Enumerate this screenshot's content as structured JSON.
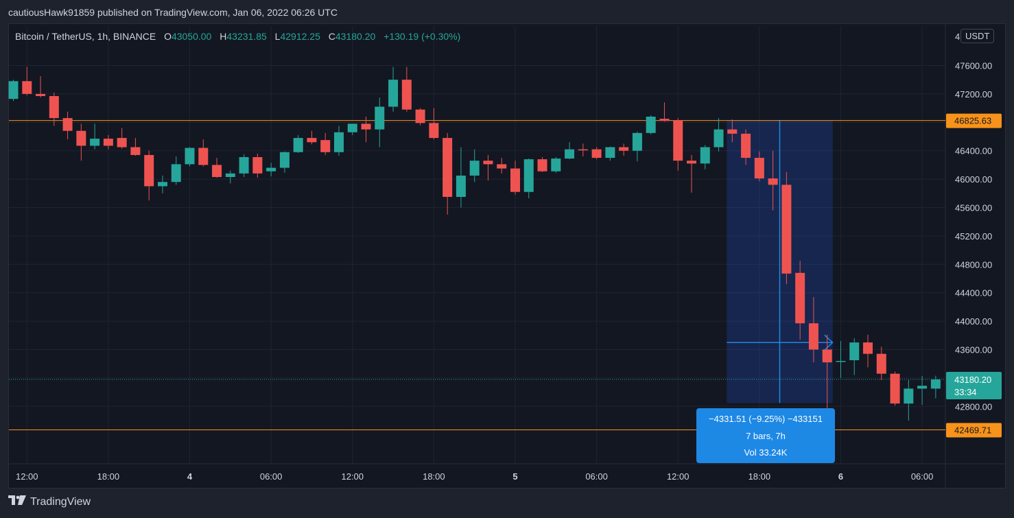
{
  "header": {
    "published_text": "cautiousHawk91859 published on TradingView.com, Jan 06, 2022 06:26 UTC"
  },
  "legend": {
    "symbol": "Bitcoin / TetherUS, 1h, BINANCE",
    "open_label": "O",
    "open": "43050.00",
    "high_label": "H",
    "high": "43231.85",
    "low_label": "L",
    "low": "42912.25",
    "close_label": "C",
    "close": "43180.20",
    "change": "+130.19 (+0.30%)"
  },
  "currency_button": "USDT",
  "footer": {
    "brand": "TradingView"
  },
  "colors": {
    "up": "#26a69a",
    "down": "#ef5350",
    "hline": "#f7931a",
    "measure": "#2962ff",
    "measure_label": "#1e88e5"
  },
  "chart_data": {
    "type": "candlestick",
    "ylim": [
      42200,
      47850
    ],
    "price_ticks": [
      47600,
      47200,
      46800,
      46400,
      46000,
      45600,
      45200,
      44800,
      44400,
      44000,
      43600,
      43200,
      42800
    ],
    "price_tick_labels": [
      "47600.00",
      "47200.00",
      "46800.00",
      "46400.00",
      "46000.00",
      "45600.00",
      "45200.00",
      "44800.00",
      "44400.00",
      "44000.00",
      "43600.00",
      "43200.00",
      "42800.00"
    ],
    "time_labels": [
      {
        "bar": 1,
        "label": "12:00"
      },
      {
        "bar": 7,
        "label": "18:00"
      },
      {
        "bar": 13,
        "label": "4"
      },
      {
        "bar": 19,
        "label": "06:00"
      },
      {
        "bar": 25,
        "label": "12:00"
      },
      {
        "bar": 31,
        "label": "18:00"
      },
      {
        "bar": 37,
        "label": "5"
      },
      {
        "bar": 43,
        "label": "06:00"
      },
      {
        "bar": 49,
        "label": "12:00"
      },
      {
        "bar": 55,
        "label": "18:00"
      },
      {
        "bar": 61,
        "label": "6"
      },
      {
        "bar": 67,
        "label": "06:00"
      }
    ],
    "candles": [
      {
        "o": 47130,
        "h": 47400,
        "l": 47100,
        "c": 47380
      },
      {
        "o": 47380,
        "h": 47580,
        "l": 47180,
        "c": 47200
      },
      {
        "o": 47200,
        "h": 47450,
        "l": 47150,
        "c": 47170
      },
      {
        "o": 47170,
        "h": 47220,
        "l": 46750,
        "c": 46860
      },
      {
        "o": 46860,
        "h": 46950,
        "l": 46560,
        "c": 46680
      },
      {
        "o": 46680,
        "h": 46780,
        "l": 46260,
        "c": 46470
      },
      {
        "o": 46470,
        "h": 46780,
        "l": 46420,
        "c": 46570
      },
      {
        "o": 46570,
        "h": 46620,
        "l": 46420,
        "c": 46470
      },
      {
        "o": 46580,
        "h": 46720,
        "l": 46430,
        "c": 46450
      },
      {
        "o": 46450,
        "h": 46580,
        "l": 46330,
        "c": 46340
      },
      {
        "o": 46340,
        "h": 46400,
        "l": 45700,
        "c": 45900
      },
      {
        "o": 45900,
        "h": 46050,
        "l": 45800,
        "c": 45960
      },
      {
        "o": 45960,
        "h": 46320,
        "l": 45920,
        "c": 46210
      },
      {
        "o": 46210,
        "h": 46450,
        "l": 46180,
        "c": 46440
      },
      {
        "o": 46440,
        "h": 46560,
        "l": 46180,
        "c": 46200
      },
      {
        "o": 46200,
        "h": 46300,
        "l": 46020,
        "c": 46030
      },
      {
        "o": 46030,
        "h": 46120,
        "l": 45940,
        "c": 46080
      },
      {
        "o": 46080,
        "h": 46350,
        "l": 46030,
        "c": 46310
      },
      {
        "o": 46310,
        "h": 46360,
        "l": 46020,
        "c": 46080
      },
      {
        "o": 46110,
        "h": 46230,
        "l": 46040,
        "c": 46160
      },
      {
        "o": 46160,
        "h": 46390,
        "l": 46090,
        "c": 46380
      },
      {
        "o": 46380,
        "h": 46620,
        "l": 46370,
        "c": 46580
      },
      {
        "o": 46580,
        "h": 46680,
        "l": 46490,
        "c": 46520
      },
      {
        "o": 46550,
        "h": 46650,
        "l": 46340,
        "c": 46380
      },
      {
        "o": 46380,
        "h": 46750,
        "l": 46330,
        "c": 46660
      },
      {
        "o": 46660,
        "h": 46780,
        "l": 46620,
        "c": 46780
      },
      {
        "o": 46780,
        "h": 46880,
        "l": 46520,
        "c": 46700
      },
      {
        "o": 46700,
        "h": 47150,
        "l": 46450,
        "c": 47020
      },
      {
        "o": 47020,
        "h": 47580,
        "l": 46950,
        "c": 47400
      },
      {
        "o": 47400,
        "h": 47580,
        "l": 46950,
        "c": 46980
      },
      {
        "o": 46980,
        "h": 47000,
        "l": 46760,
        "c": 46790
      },
      {
        "o": 46790,
        "h": 47000,
        "l": 46560,
        "c": 46580
      },
      {
        "o": 46580,
        "h": 46650,
        "l": 45500,
        "c": 45750
      },
      {
        "o": 45750,
        "h": 46450,
        "l": 45600,
        "c": 46050
      },
      {
        "o": 46050,
        "h": 46420,
        "l": 45960,
        "c": 46260
      },
      {
        "o": 46260,
        "h": 46340,
        "l": 45980,
        "c": 46210
      },
      {
        "o": 46210,
        "h": 46300,
        "l": 46080,
        "c": 46150
      },
      {
        "o": 46150,
        "h": 46260,
        "l": 45780,
        "c": 45820
      },
      {
        "o": 45820,
        "h": 46290,
        "l": 45730,
        "c": 46280
      },
      {
        "o": 46280,
        "h": 46310,
        "l": 46100,
        "c": 46110
      },
      {
        "o": 46110,
        "h": 46310,
        "l": 46090,
        "c": 46290
      },
      {
        "o": 46290,
        "h": 46520,
        "l": 46280,
        "c": 46420
      },
      {
        "o": 46420,
        "h": 46500,
        "l": 46320,
        "c": 46410
      },
      {
        "o": 46420,
        "h": 46450,
        "l": 46280,
        "c": 46300
      },
      {
        "o": 46300,
        "h": 46460,
        "l": 46260,
        "c": 46450
      },
      {
        "o": 46450,
        "h": 46500,
        "l": 46330,
        "c": 46400
      },
      {
        "o": 46400,
        "h": 46670,
        "l": 46250,
        "c": 46650
      },
      {
        "o": 46650,
        "h": 46900,
        "l": 46630,
        "c": 46880
      },
      {
        "o": 46850,
        "h": 47080,
        "l": 46810,
        "c": 46820
      },
      {
        "o": 46830,
        "h": 46860,
        "l": 46120,
        "c": 46260
      },
      {
        "o": 46260,
        "h": 46340,
        "l": 45810,
        "c": 46220
      },
      {
        "o": 46220,
        "h": 46480,
        "l": 46140,
        "c": 46450
      },
      {
        "o": 46450,
        "h": 46860,
        "l": 46390,
        "c": 46700
      },
      {
        "o": 46700,
        "h": 46840,
        "l": 46520,
        "c": 46640
      },
      {
        "o": 46640,
        "h": 46700,
        "l": 46200,
        "c": 46300
      },
      {
        "o": 46300,
        "h": 46390,
        "l": 45970,
        "c": 46010
      },
      {
        "o": 46010,
        "h": 46400,
        "l": 45560,
        "c": 45920
      },
      {
        "o": 45920,
        "h": 46100,
        "l": 44520,
        "c": 44670
      },
      {
        "o": 44680,
        "h": 44850,
        "l": 43740,
        "c": 43970
      },
      {
        "o": 43970,
        "h": 44340,
        "l": 43420,
        "c": 43600
      },
      {
        "o": 43600,
        "h": 43810,
        "l": 42480,
        "c": 43420
      },
      {
        "o": 43430,
        "h": 43720,
        "l": 43200,
        "c": 43440
      },
      {
        "o": 43450,
        "h": 43760,
        "l": 43240,
        "c": 43700
      },
      {
        "o": 43700,
        "h": 43810,
        "l": 43350,
        "c": 43540
      },
      {
        "o": 43540,
        "h": 43640,
        "l": 43170,
        "c": 43260
      },
      {
        "o": 43260,
        "h": 43290,
        "l": 42810,
        "c": 42840
      },
      {
        "o": 42840,
        "h": 43170,
        "l": 42600,
        "c": 43050
      },
      {
        "o": 43050,
        "h": 43230,
        "l": 42820,
        "c": 43090
      },
      {
        "o": 43050,
        "h": 43232,
        "l": 42912,
        "c": 43180
      }
    ],
    "horizontal_lines": [
      {
        "price": 46825.63,
        "label": "46825.63"
      },
      {
        "price": 42469.71,
        "label": "42469.71"
      }
    ],
    "last_price": {
      "price": 43180.2,
      "label": "43180.20",
      "countdown": "33:34"
    },
    "measure": {
      "from_bar": 53,
      "to_bar": 60,
      "from_price": 46830,
      "to_price": 42500,
      "line1": "−4331.51 (−9.25%) −433151",
      "line2": "7 bars, 7h",
      "line3": "Vol 33.24K"
    }
  }
}
